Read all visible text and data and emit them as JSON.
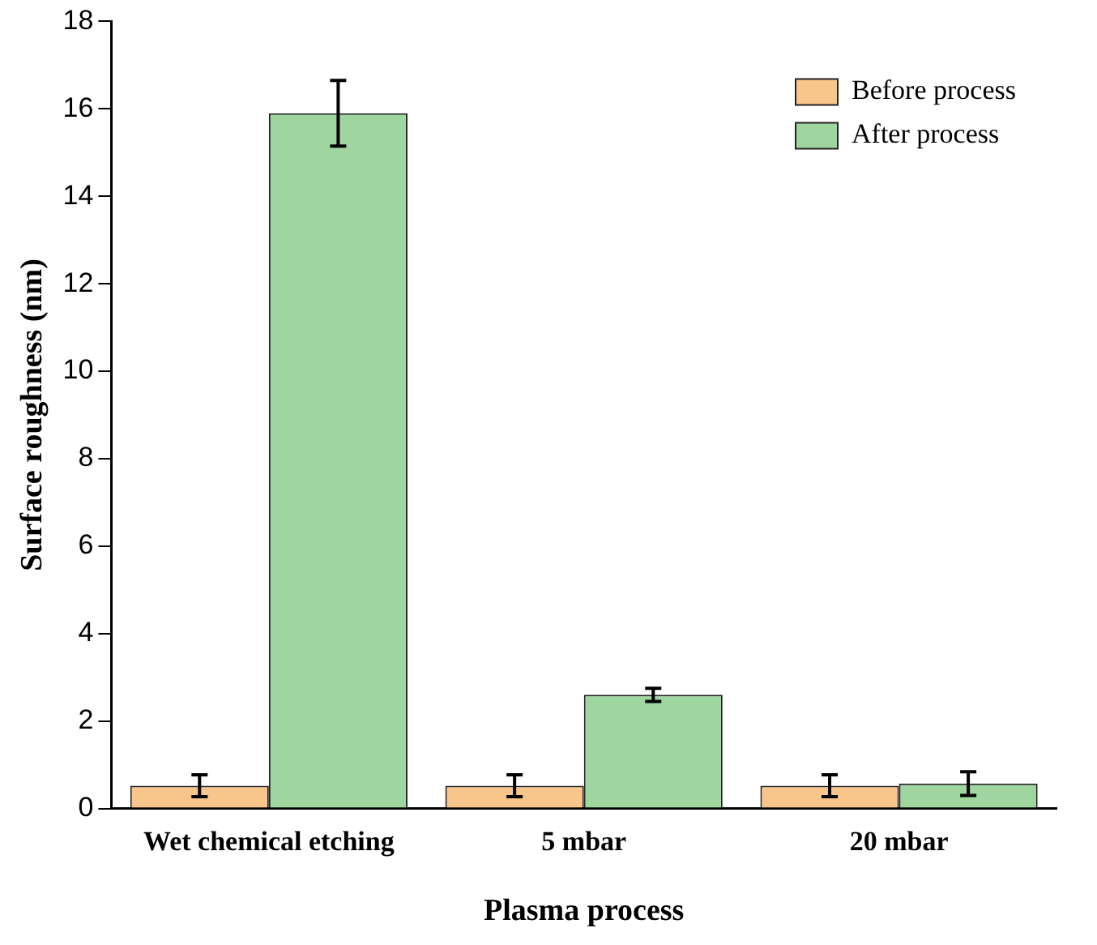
{
  "chart_data": {
    "type": "bar",
    "xlabel": "Plasma process",
    "ylabel": "Surface roughness (nm)",
    "categories": [
      "Wet chemical etching",
      "5 mbar",
      "20 mbar"
    ],
    "series": [
      {
        "name": "Before process",
        "color": "#f8c58a",
        "values": [
          0.52,
          0.52,
          0.52
        ],
        "errors": [
          0.25,
          0.25,
          0.25
        ]
      },
      {
        "name": "After process",
        "color": "#9fd6a0",
        "values": [
          15.9,
          2.6,
          0.57
        ],
        "errors": [
          0.75,
          0.15,
          0.27
        ]
      }
    ],
    "ylim": [
      0,
      18
    ],
    "yticks": [
      0,
      2,
      4,
      6,
      8,
      10,
      12,
      14,
      16,
      18
    ],
    "grid": false,
    "legend": "top right"
  }
}
